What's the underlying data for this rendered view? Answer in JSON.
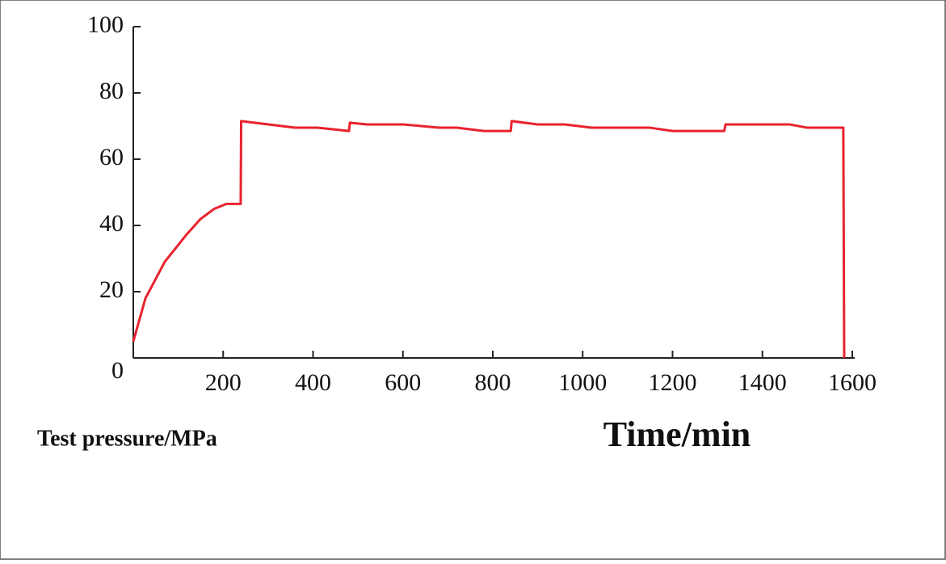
{
  "chart_data": {
    "type": "line",
    "x_label": "Time/min",
    "y_label": "Test pressure/MPa",
    "x": [
      0,
      27,
      70,
      117,
      150,
      180,
      207,
      239,
      240,
      360,
      410,
      480,
      482,
      520,
      600,
      680,
      720,
      780,
      840,
      842,
      900,
      960,
      1020,
      1150,
      1200,
      1315,
      1318,
      1460,
      1500,
      1580,
      1582
    ],
    "series": [
      {
        "name": "Test pressure",
        "color": "#e8232e",
        "values": [
          5,
          18,
          29,
          37,
          42,
          45,
          46.5,
          46.5,
          71.5,
          69.5,
          69.5,
          68.5,
          71,
          70.5,
          70.5,
          69.5,
          69.5,
          68.5,
          68.5,
          71.5,
          70.5,
          70.5,
          69.5,
          69.5,
          68.5,
          68.5,
          70.5,
          70.5,
          69.5,
          69.5,
          0
        ]
      }
    ],
    "xlim": [
      0,
      1600
    ],
    "ylim": [
      0,
      100
    ],
    "xticks": [
      200,
      400,
      600,
      800,
      1000,
      1200,
      1400,
      1600
    ],
    "yticks": [
      0,
      20,
      40,
      60,
      80,
      100
    ]
  }
}
